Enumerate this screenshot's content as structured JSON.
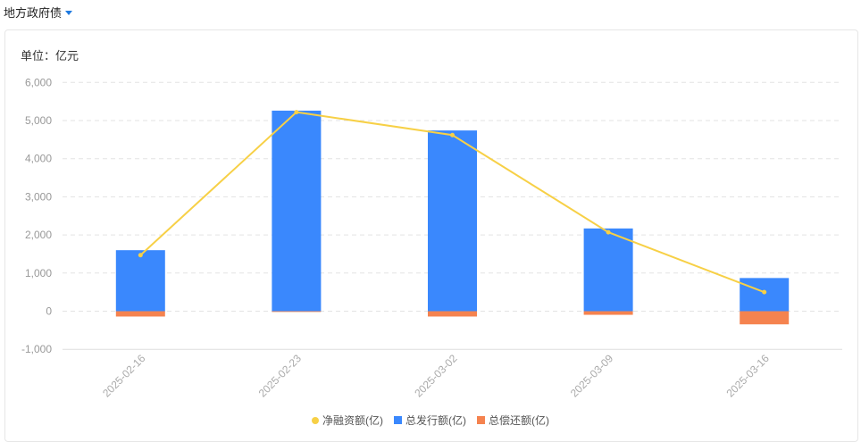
{
  "header": {
    "title": "地方政府债",
    "dropdown_icon": "caret-down-icon"
  },
  "unit_label": "单位：亿元",
  "colors": {
    "net": "#f7d046",
    "issue": "#3a88fd",
    "repay": "#f5834f"
  },
  "chart_data": {
    "type": "bar",
    "categories": [
      "2025-02-16",
      "2025-02-23",
      "2025-03-02",
      "2025-03-09",
      "2025-03-16"
    ],
    "ylim": [
      -1000,
      6000
    ],
    "yticks": [
      -1000,
      0,
      1000,
      2000,
      3000,
      4000,
      5000,
      6000
    ],
    "ytick_labels": [
      "-1,000",
      "0",
      "1,000",
      "2,000",
      "3,000",
      "4,000",
      "5,000",
      "6,000"
    ],
    "grid": true,
    "legend_position": "bottom",
    "series": [
      {
        "name": "净融资额(亿)",
        "type": "line",
        "values": [
          1470,
          5220,
          4620,
          2070,
          500
        ]
      },
      {
        "name": "总发行额(亿)",
        "type": "bar",
        "stack": "a",
        "values": [
          1600,
          5260,
          4740,
          2170,
          870
        ]
      },
      {
        "name": "总偿还额(亿)",
        "type": "bar",
        "stack": "a",
        "values": [
          -140,
          -20,
          -140,
          -95,
          -345
        ]
      }
    ]
  }
}
